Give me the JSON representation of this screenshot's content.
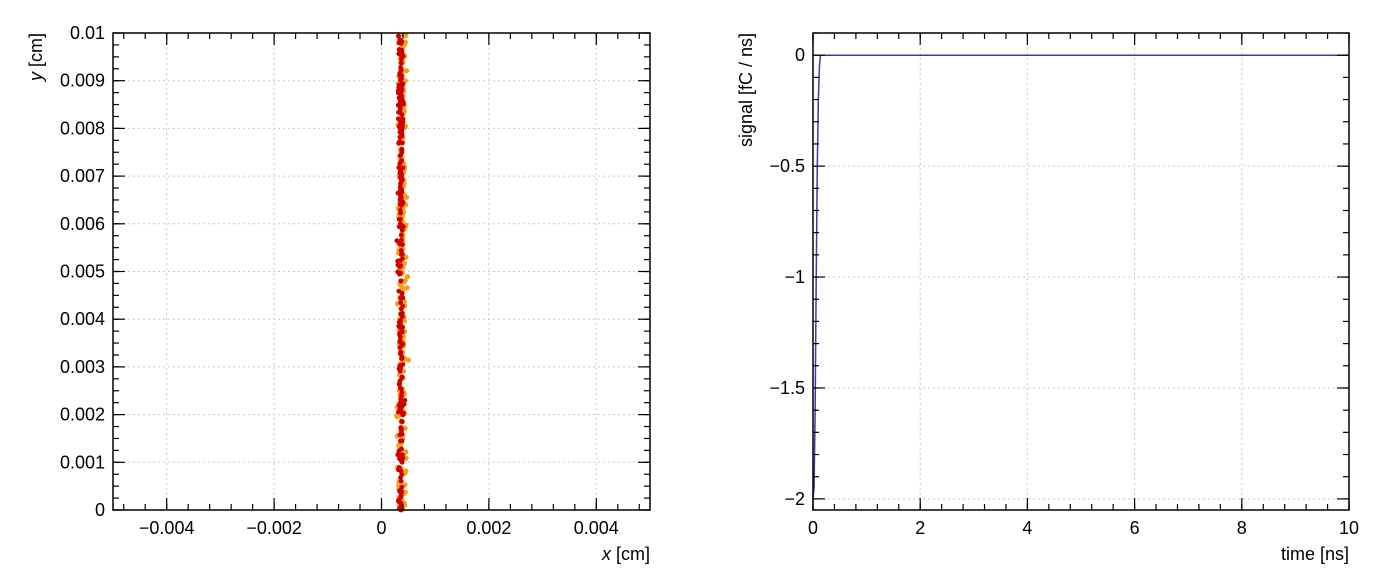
{
  "chart_data": [
    {
      "type": "scatter",
      "title": "",
      "xlabel_var": "x",
      "xlabel_unit": " [cm]",
      "ylabel_var": "y",
      "ylabel_unit": " [cm]",
      "xlim": [
        -0.005,
        0.005
      ],
      "ylim": [
        0,
        0.01
      ],
      "grid": true,
      "x_ticks": [
        -0.004,
        -0.002,
        0,
        0.002,
        0.004
      ],
      "x_tick_labels": [
        "−0.004",
        "−0.002",
        "0",
        "0.002",
        "0.004"
      ],
      "y_ticks": [
        0,
        0.001,
        0.002,
        0.003,
        0.004,
        0.005,
        0.006,
        0.007,
        0.008,
        0.009,
        0.01
      ],
      "y_tick_labels": [
        "0",
        "0.001",
        "0.002",
        "0.003",
        "0.004",
        "0.005",
        "0.006",
        "0.007",
        "0.008",
        "0.009",
        "0.01"
      ],
      "series": [
        {
          "color": "#f5a01a",
          "x_center": 0.00038,
          "x_spread": 6e-05,
          "y_range": [
            0,
            0.01
          ],
          "point_count": 320
        },
        {
          "color": "#cc0000",
          "x_center": 0.00036,
          "x_spread": 4e-05,
          "y_range": [
            0,
            0.01
          ],
          "point_count": 260
        }
      ]
    },
    {
      "type": "line",
      "title": "",
      "xlabel": "time [ns]",
      "ylabel": "signal [fC / ns]",
      "xlim": [
        0,
        10
      ],
      "ylim": [
        -2.05,
        0.1
      ],
      "grid": true,
      "x_ticks": [
        0,
        2,
        4,
        6,
        8,
        10
      ],
      "x_tick_labels": [
        "0",
        "2",
        "4",
        "6",
        "8",
        "10"
      ],
      "y_ticks": [
        0,
        -0.5,
        -1,
        -1.5,
        -2
      ],
      "y_tick_labels": [
        "0",
        "−0.5",
        "−1",
        "−1.5",
        "−2"
      ],
      "series": [
        {
          "color": "#3a3aa0",
          "x": [
            0,
            0.02,
            0.04,
            0.06,
            0.08,
            0.1,
            0.12,
            0.14,
            0.2,
            1,
            10
          ],
          "y": [
            -2.0,
            -1.95,
            -1.6,
            -1.0,
            -0.5,
            -0.2,
            -0.05,
            0,
            0,
            0,
            0
          ]
        }
      ]
    }
  ]
}
